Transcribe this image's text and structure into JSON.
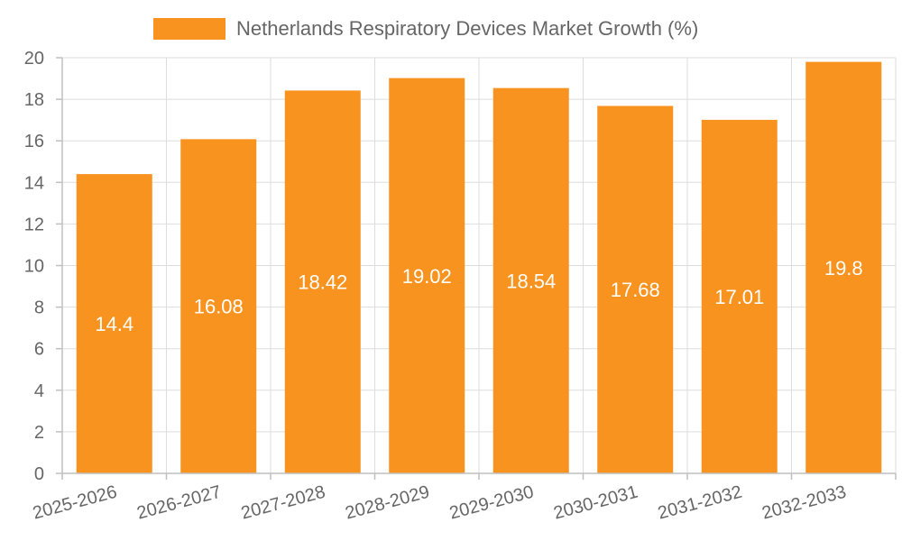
{
  "chart_data": {
    "type": "bar",
    "title": "",
    "xlabel": "",
    "ylabel": "",
    "categories": [
      "2025-2026",
      "2026-2027",
      "2027-2028",
      "2028-2029",
      "2029-2030",
      "2030-2031",
      "2031-2032",
      "2032-2033"
    ],
    "series": [
      {
        "name": "Netherlands Respiratory Devices Market Growth (%)",
        "values": [
          14.4,
          16.08,
          18.42,
          19.02,
          18.54,
          17.68,
          17.01,
          19.8
        ],
        "color": "#f7931e"
      }
    ],
    "data_labels": [
      "14.4",
      "16.08",
      "18.42",
      "19.02",
      "18.54",
      "17.68",
      "17.01",
      "19.8"
    ],
    "ylim": [
      0,
      20
    ],
    "y_ticks": [
      0,
      2,
      4,
      6,
      8,
      10,
      12,
      14,
      16,
      18,
      20
    ],
    "grid": true,
    "legend_position": "top"
  }
}
